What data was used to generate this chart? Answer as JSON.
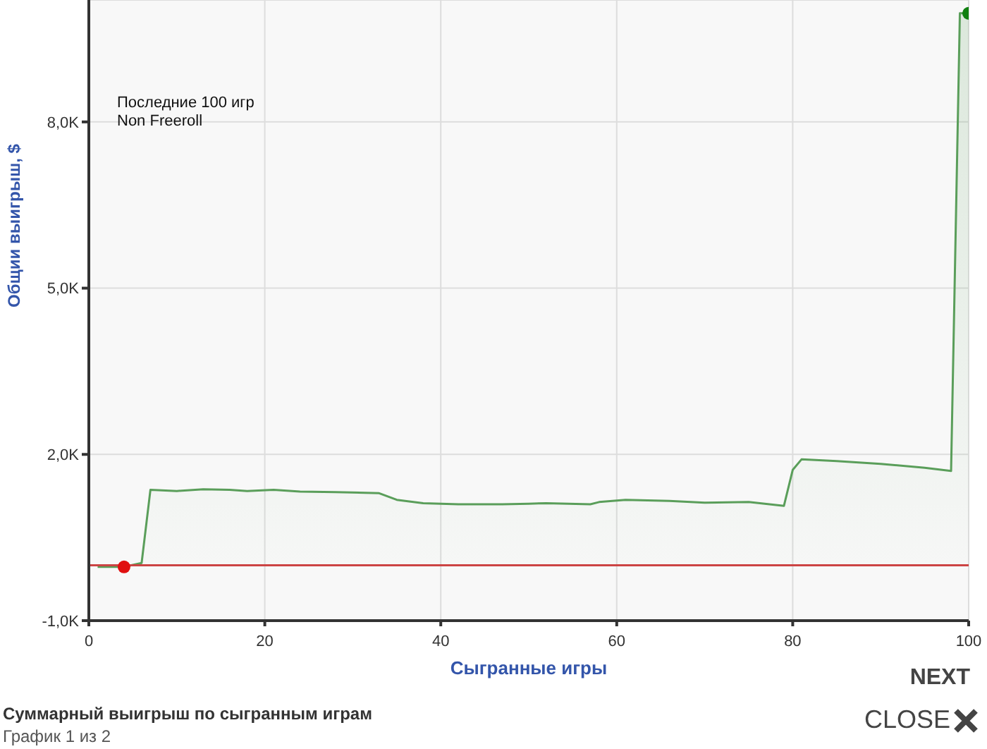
{
  "chart_data": {
    "type": "area",
    "title": "Суммарный выигрыш по сыгранным играм",
    "subtitle": "График 1 из 2",
    "xlabel": "Сыгранные игры",
    "ylabel": "Общии выигрыш, $",
    "annotations": [
      "Последние 100 игр",
      "Non Freeroll",
      "NEXT",
      "CLOSE"
    ],
    "xlim": [
      0,
      100
    ],
    "xticks": [
      0,
      20,
      40,
      60,
      80,
      100
    ],
    "ylim": [
      -1000,
      10200
    ],
    "yticks": [
      {
        "value": -1000,
        "label": "-1,0K"
      },
      {
        "value": 2000,
        "label": "2,0K"
      },
      {
        "value": 5000,
        "label": "5,0K"
      },
      {
        "value": 8000,
        "label": "8,0K"
      }
    ],
    "grid": true,
    "marker": "none",
    "ref_lines": [
      {
        "axis": "y",
        "value": 0,
        "color": "#cc4444"
      }
    ],
    "series": [
      {
        "color": "#5a9e5a",
        "x": [
          1,
          4,
          6,
          7,
          10,
          13,
          16,
          18,
          21,
          24,
          28,
          33,
          35,
          38,
          42,
          47,
          50,
          52,
          57,
          58,
          61,
          66,
          70,
          75,
          79,
          80,
          81,
          85,
          90,
          95,
          98,
          99,
          100
        ],
        "values": [
          -30,
          -30,
          40,
          1360,
          1340,
          1370,
          1360,
          1340,
          1360,
          1330,
          1320,
          1300,
          1180,
          1120,
          1100,
          1100,
          1110,
          1120,
          1100,
          1140,
          1180,
          1160,
          1130,
          1140,
          1070,
          1720,
          1910,
          1880,
          1830,
          1760,
          1700,
          9960,
          9960
        ]
      },
      {
        "type": "scatter",
        "marker": "circle",
        "x": [
          4,
          100
        ],
        "values": [
          -30,
          9960
        ],
        "colors": [
          "#e01010",
          "#108010"
        ]
      }
    ]
  }
}
